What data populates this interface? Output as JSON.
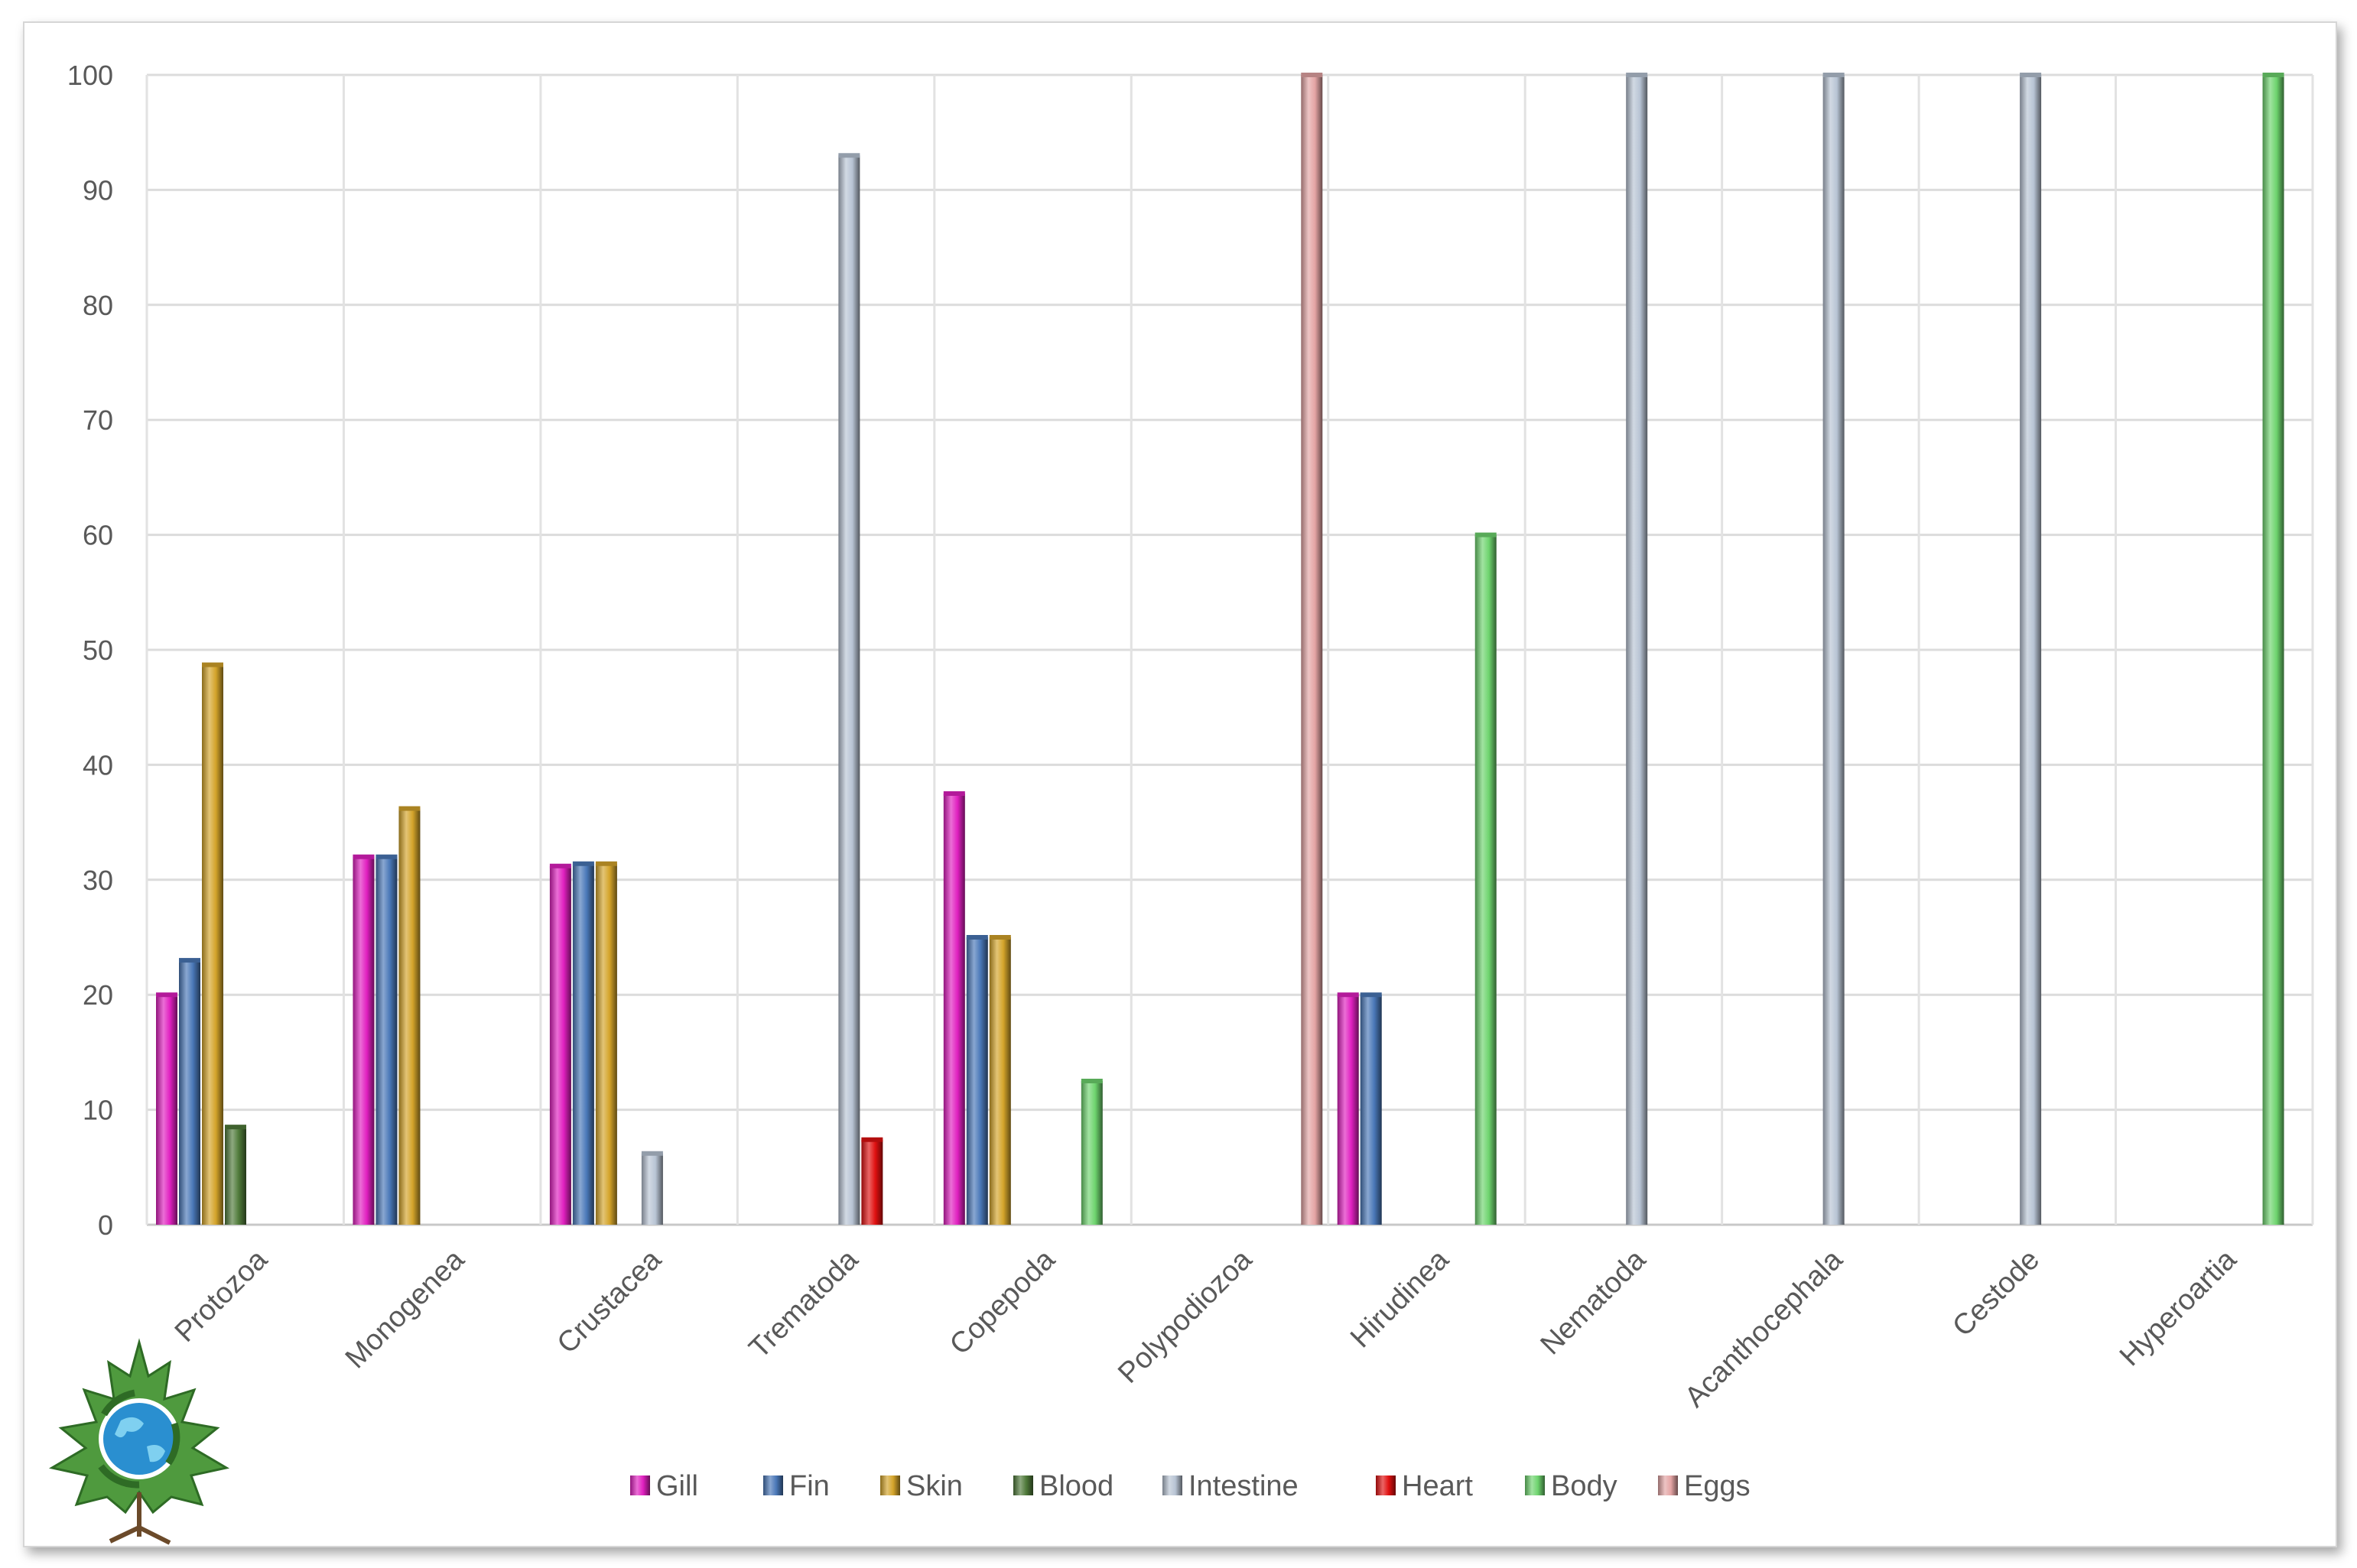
{
  "chart_data": {
    "type": "bar",
    "title": "",
    "xlabel": "",
    "ylabel": "",
    "ylim": [
      0,
      100
    ],
    "yticks": [
      0,
      10,
      20,
      30,
      40,
      50,
      60,
      70,
      80,
      90,
      100
    ],
    "grid": true,
    "legend_position": "bottom",
    "categories": [
      "Protozoa",
      "Monogenea",
      "Crustacea",
      "Trematoda",
      "Copepoda",
      "Polypodiozoa",
      "Hirudinea",
      "Nematoda",
      "Acanthocephala",
      "Cestode",
      "Hyperoartia"
    ],
    "series": [
      {
        "name": "Gill",
        "color": "#e020c0",
        "values": [
          20,
          32,
          31.2,
          null,
          37.5,
          null,
          20,
          null,
          null,
          null,
          null
        ]
      },
      {
        "name": "Fin",
        "color": "#4a78b8",
        "values": [
          23,
          32,
          31.4,
          null,
          25,
          null,
          20,
          null,
          null,
          null,
          null
        ]
      },
      {
        "name": "Skin",
        "color": "#d4a42a",
        "values": [
          48.7,
          36.2,
          31.4,
          null,
          25,
          null,
          null,
          null,
          null,
          null,
          null
        ]
      },
      {
        "name": "Blood",
        "color": "#4f7a3a",
        "values": [
          8.5,
          null,
          null,
          null,
          null,
          null,
          null,
          null,
          null,
          null,
          null
        ]
      },
      {
        "name": "Intestine",
        "color": "#b8c4d4",
        "values": [
          null,
          null,
          6.2,
          93,
          null,
          null,
          null,
          100,
          100,
          100,
          null
        ]
      },
      {
        "name": "Heart",
        "color": "#e01010",
        "values": [
          null,
          null,
          null,
          7.4,
          null,
          null,
          null,
          null,
          null,
          null,
          null
        ]
      },
      {
        "name": "Body",
        "color": "#6ed46e",
        "values": [
          null,
          null,
          null,
          null,
          12.5,
          null,
          60,
          null,
          null,
          null,
          100
        ]
      },
      {
        "name": "Eggs",
        "color": "#e4a4a4",
        "values": [
          null,
          null,
          null,
          null,
          null,
          100,
          null,
          null,
          null,
          null,
          null
        ]
      }
    ]
  },
  "logo": {
    "icon": "maple-leaf-globe-recycle-logo"
  }
}
